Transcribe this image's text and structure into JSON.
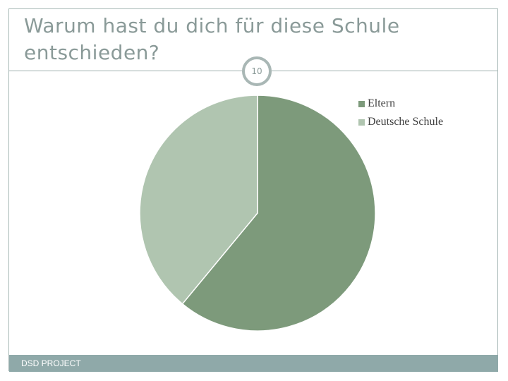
{
  "slide": {
    "title": "Warum hast du dich für diese Schule entschieden?",
    "number": "10",
    "footer": "DSD PROJECT"
  },
  "chart_data": {
    "type": "pie",
    "legend_position": "top-right",
    "slices": [
      {
        "name": "Eltern",
        "value": 61,
        "color": "#7d9a7b"
      },
      {
        "name": "Deutsche Schule",
        "value": 39,
        "color": "#b0c5b0"
      }
    ]
  }
}
